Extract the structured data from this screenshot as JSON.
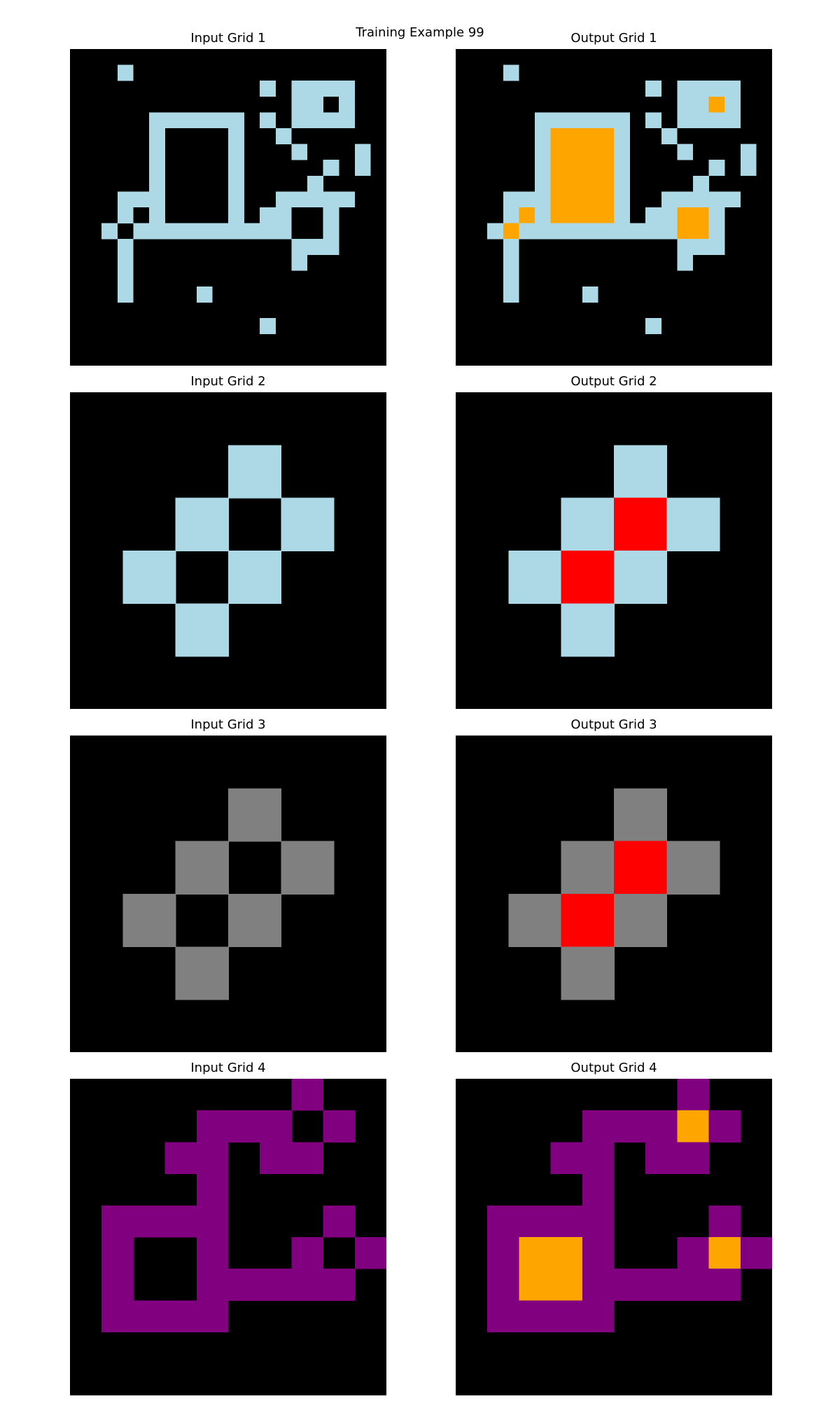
{
  "title": "Training Example 99",
  "colors": {
    "0": "#000000",
    "2": "#ff0000",
    "5": "#808080",
    "6": "#800080",
    "7": "#ffa500",
    "8": "#add8e6"
  },
  "pairs": [
    {
      "input_title": "Input Grid 1",
      "output_title": "Output Grid 1",
      "input": [
        "00000000000000000000",
        "00080000000000000000",
        "00000000000080888800",
        "00000000000000880800",
        "00000888888080888800",
        "00000800008008000000",
        "00000800008000800080",
        "00000800008000008080",
        "00000800008000080000",
        "00088800008008888800",
        "00080800008088008000",
        "00808888888888008000",
        "00080000000000888000",
        "00080000000000800000",
        "00080000000000000000",
        "00080000800000000000",
        "00000000000000000000",
        "00000000000080000000",
        "00000000000000000000",
        "00000000000000000000"
      ],
      "output": [
        "00000000000000000000",
        "00080000000000000000",
        "00000000000080888800",
        "00000000000000887800",
        "00000888888080888800",
        "00000877778008000000",
        "00000877778000800080",
        "00000877778000008080",
        "00000877778000080000",
        "00088877778008888800",
        "00087877778088778000",
        "00878888888888778000",
        "00080000000000888000",
        "00080000000000800000",
        "00080000000000000000",
        "00080000800000000000",
        "00000000000000000000",
        "00000000000080000000",
        "00000000000000000000",
        "00000000000000000000"
      ]
    },
    {
      "input_title": "Input Grid 2",
      "output_title": "Output Grid 2",
      "input": [
        "000000",
        "000800",
        "008080",
        "080800",
        "008000",
        "000000"
      ],
      "output": [
        "000000",
        "000800",
        "008280",
        "082800",
        "008000",
        "000000"
      ]
    },
    {
      "input_title": "Input Grid 3",
      "output_title": "Output Grid 3",
      "input": [
        "000000",
        "000500",
        "005050",
        "050500",
        "005000",
        "000000"
      ],
      "output": [
        "000000",
        "000500",
        "005250",
        "052500",
        "005000",
        "000000"
      ]
    },
    {
      "input_title": "Input Grid 4",
      "output_title": "Output Grid 4",
      "input": [
        "0000000600",
        "0000666060",
        "0006606600",
        "0000600000",
        "0666600060",
        "0600600606",
        "0600666660",
        "0666600000",
        "0000000000",
        "0000000000"
      ],
      "output": [
        "0000000600",
        "0000666760",
        "0006606600",
        "0000600000",
        "0666600060",
        "0677600676",
        "0677666660",
        "0666600000",
        "0000000000",
        "0000000000"
      ]
    }
  ]
}
